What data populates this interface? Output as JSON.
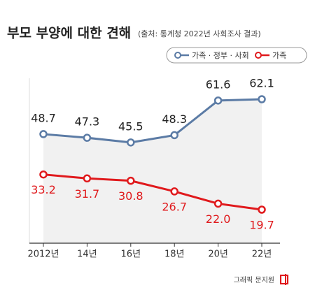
{
  "chart_data": {
    "type": "line",
    "title": "부모 부양에 대한 견해",
    "subtitle": "(출처: 통계청 2022년 사회조사 결과)",
    "categories": [
      "2012년",
      "14년",
      "16년",
      "18년",
      "20년",
      "22년"
    ],
    "series": [
      {
        "name": "가족 · 정부 · 사회",
        "color": "#5b7ba5",
        "values": [
          48.7,
          47.3,
          45.5,
          48.3,
          61.6,
          62.1
        ],
        "value_labels": [
          "48.7",
          "47.3",
          "45.5",
          "48.3",
          "61.6",
          "62.1"
        ]
      },
      {
        "name": "가족",
        "color": "#e0191c",
        "values": [
          33.2,
          31.7,
          30.8,
          26.7,
          22.0,
          19.7
        ],
        "value_labels": [
          "33.2",
          "31.7",
          "30.8",
          "26.7",
          "22.0",
          "19.7"
        ]
      }
    ],
    "credit": "그래픽 문지원"
  }
}
